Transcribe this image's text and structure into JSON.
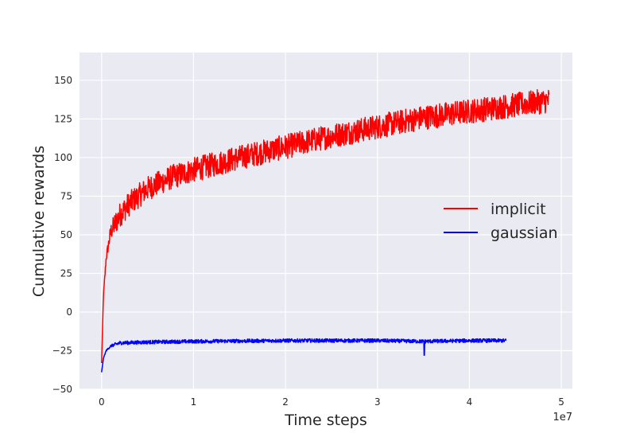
{
  "chart_data": {
    "type": "line",
    "title": "",
    "xlabel": "Time steps",
    "ylabel": "Cumulative rewards",
    "x_offset_label": "1e7",
    "xlim": [
      -0.24,
      5.12
    ],
    "ylim": [
      -50,
      168
    ],
    "x_ticks": [
      0,
      1,
      2,
      3,
      4,
      5
    ],
    "x_tick_labels": [
      "0",
      "1",
      "2",
      "3",
      "4",
      "5"
    ],
    "y_ticks": [
      -50,
      -25,
      0,
      25,
      50,
      75,
      100,
      125,
      150
    ],
    "y_tick_labels": [
      "−50",
      "−25",
      "0",
      "25",
      "50",
      "75",
      "100",
      "125",
      "150"
    ],
    "grid": true,
    "legend_position": "center-right",
    "colors": {
      "implicit": "#ff0000",
      "gaussian": "#0000ff",
      "background": "#eaeaf2",
      "grid": "#ffffff"
    },
    "series": [
      {
        "name": "implicit",
        "x": [
          0,
          0.02,
          0.05,
          0.1,
          0.2,
          0.3,
          0.5,
          0.75,
          1.0,
          1.5,
          2.0,
          2.5,
          3.0,
          3.5,
          4.0,
          4.5,
          4.87
        ],
        "y": [
          -33,
          10,
          35,
          52,
          63,
          70,
          80,
          87,
          92,
          100,
          107,
          114,
          120,
          126,
          130,
          134,
          137
        ],
        "noise_spread": 8
      },
      {
        "name": "gaussian",
        "x": [
          0,
          0.02,
          0.05,
          0.1,
          0.2,
          0.5,
          1.0,
          2.0,
          3.0,
          3.5,
          4.0,
          4.4
        ],
        "y": [
          -39,
          -30,
          -25,
          -22,
          -20,
          -19.5,
          -19,
          -18.5,
          -18.5,
          -19,
          -18.5,
          -18.5
        ],
        "noise_spread": 1.2,
        "spike": {
          "x": 3.51,
          "y": -28
        }
      }
    ]
  }
}
